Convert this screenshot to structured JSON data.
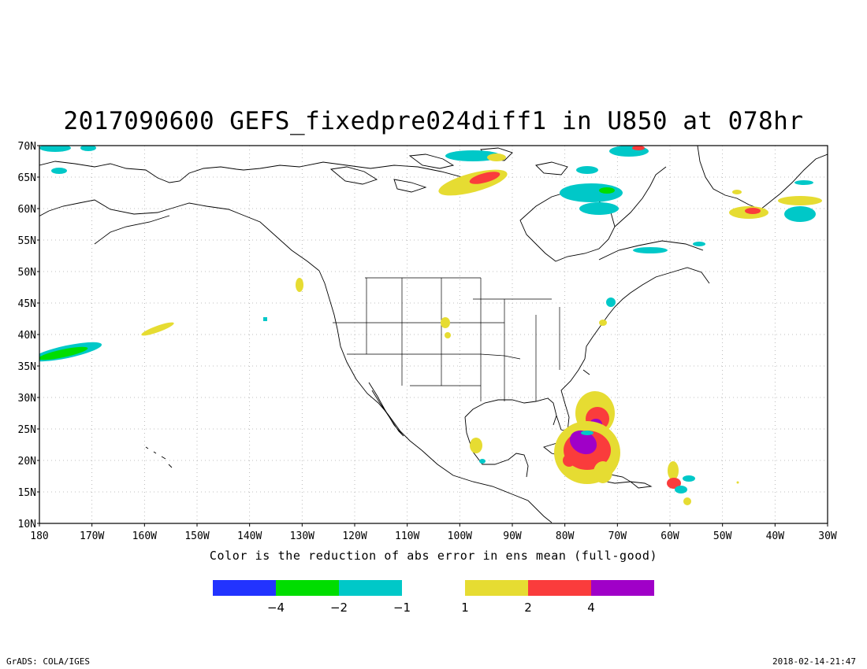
{
  "title": "2017090600 GEFS_fixedpre024diff1 in U850 at 078hr",
  "caption": "Color is the reduction of abs error in ens mean (full-good)",
  "footer": {
    "left": "GrADS: COLA/IGES",
    "right": "2018-02-14-21:47"
  },
  "map": {
    "lat_range": [
      10,
      70
    ],
    "lon_range": [
      -180,
      -30
    ],
    "lat_ticks": [
      "10N",
      "15N",
      "20N",
      "25N",
      "30N",
      "35N",
      "40N",
      "45N",
      "50N",
      "55N",
      "60N",
      "65N",
      "70N"
    ],
    "lon_ticks": [
      "180",
      "170W",
      "160W",
      "150W",
      "140W",
      "130W",
      "120W",
      "110W",
      "100W",
      "90W",
      "80W",
      "70W",
      "60W",
      "50W",
      "40W",
      "30W"
    ],
    "grid": "dotted"
  },
  "legend": {
    "bins": [
      {
        "color": "#2233ff"
      },
      {
        "color": "#00dd00"
      },
      {
        "color": "#00c8c8"
      },
      {
        "color": "#e6dc32"
      },
      {
        "color": "#fa3c3c"
      },
      {
        "color": "#a000c8"
      }
    ],
    "labels": [
      "-4",
      "-2",
      "-1",
      "1",
      "2",
      "4"
    ]
  },
  "colors": {
    "neg4": "#2233ff",
    "neg2": "#00dd00",
    "neg1": "#00c8c8",
    "pos1": "#e6dc32",
    "pos2": "#fa3c3c",
    "pos4": "#a000c8"
  }
}
